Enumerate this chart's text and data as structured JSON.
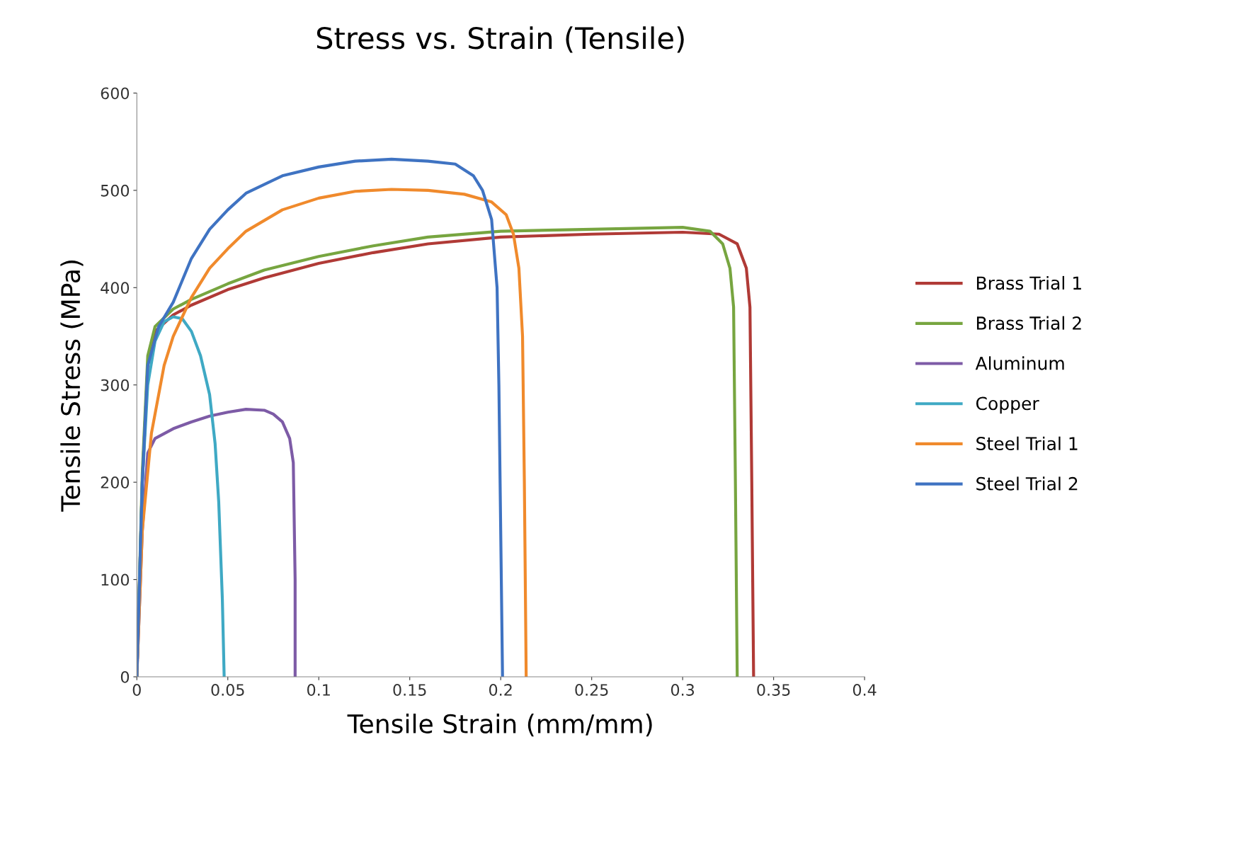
{
  "chart_data": {
    "type": "line",
    "title": "Stress vs. Strain (Tensile)",
    "xlabel": "Tensile Strain (mm/mm)",
    "ylabel": "Tensile Stress (MPa)",
    "xlim": [
      0,
      0.4
    ],
    "xticks": [
      0,
      0.05,
      0.1,
      0.15,
      0.2,
      0.25,
      0.3,
      0.35,
      0.4
    ],
    "ylim": [
      0,
      600
    ],
    "yticks": [
      0,
      100,
      200,
      300,
      400,
      500,
      600
    ],
    "grid": false,
    "legend": "right",
    "marker": "none",
    "line_style": "solid",
    "series": [
      {
        "name": "Brass Trial 1",
        "color": "#b03a36",
        "x": [
          0,
          0.003,
          0.006,
          0.01,
          0.02,
          0.03,
          0.05,
          0.07,
          0.1,
          0.13,
          0.16,
          0.2,
          0.25,
          0.3,
          0.32,
          0.33,
          0.335,
          0.337,
          0.338,
          0.339
        ],
        "values": [
          0,
          200,
          320,
          355,
          372,
          382,
          398,
          410,
          425,
          436,
          445,
          452,
          455,
          457,
          455,
          445,
          420,
          380,
          200,
          0
        ]
      },
      {
        "name": "Brass Trial 2",
        "color": "#77a540",
        "x": [
          0,
          0.003,
          0.006,
          0.01,
          0.02,
          0.03,
          0.05,
          0.07,
          0.1,
          0.13,
          0.16,
          0.2,
          0.25,
          0.3,
          0.315,
          0.322,
          0.326,
          0.328,
          0.329,
          0.33
        ],
        "values": [
          0,
          210,
          330,
          360,
          378,
          388,
          404,
          418,
          432,
          443,
          452,
          458,
          460,
          462,
          458,
          445,
          420,
          380,
          200,
          0
        ]
      },
      {
        "name": "Aluminum",
        "color": "#7d5ba6",
        "x": [
          0,
          0.003,
          0.006,
          0.01,
          0.02,
          0.03,
          0.04,
          0.05,
          0.06,
          0.07,
          0.075,
          0.08,
          0.084,
          0.086,
          0.087,
          0.087
        ],
        "values": [
          0,
          150,
          230,
          245,
          255,
          262,
          268,
          272,
          275,
          274,
          270,
          262,
          245,
          220,
          100,
          0
        ]
      },
      {
        "name": "Copper",
        "color": "#3fa9c4",
        "x": [
          0,
          0.003,
          0.006,
          0.01,
          0.015,
          0.02,
          0.025,
          0.03,
          0.035,
          0.04,
          0.043,
          0.045,
          0.047,
          0.048
        ],
        "values": [
          0,
          200,
          300,
          345,
          365,
          370,
          368,
          355,
          330,
          290,
          240,
          180,
          80,
          0
        ]
      },
      {
        "name": "Steel Trial 1",
        "color": "#f08a2c",
        "x": [
          0,
          0.003,
          0.008,
          0.015,
          0.02,
          0.03,
          0.04,
          0.05,
          0.06,
          0.08,
          0.1,
          0.12,
          0.14,
          0.16,
          0.18,
          0.195,
          0.203,
          0.207,
          0.21,
          0.212,
          0.213,
          0.214
        ],
        "values": [
          0,
          150,
          250,
          320,
          350,
          390,
          420,
          440,
          458,
          480,
          492,
          499,
          501,
          500,
          496,
          488,
          475,
          455,
          420,
          350,
          200,
          0
        ]
      },
      {
        "name": "Steel Trial 2",
        "color": "#3f73c2",
        "x": [
          0,
          0.003,
          0.006,
          0.012,
          0.02,
          0.03,
          0.04,
          0.05,
          0.06,
          0.08,
          0.1,
          0.12,
          0.14,
          0.16,
          0.175,
          0.185,
          0.19,
          0.195,
          0.198,
          0.199,
          0.2,
          0.201
        ],
        "values": [
          0,
          200,
          320,
          360,
          385,
          430,
          460,
          480,
          497,
          515,
          524,
          530,
          532,
          530,
          527,
          515,
          500,
          470,
          400,
          300,
          150,
          0
        ]
      }
    ]
  }
}
